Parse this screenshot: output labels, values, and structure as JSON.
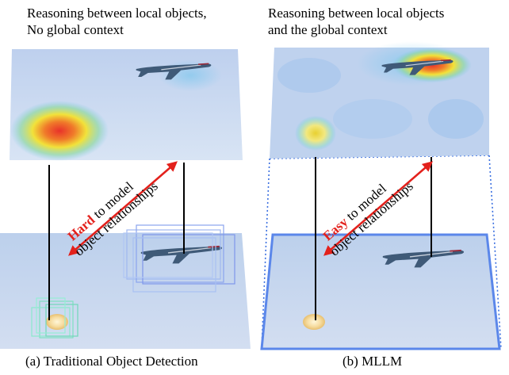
{
  "panel_a": {
    "header_line1": "Reasoning between local objects,",
    "header_line2": "No global context",
    "keyword": "Hard",
    "label_rest": " to model",
    "label_line2": "object relationships",
    "caption": "(a) Traditional Object Detection"
  },
  "panel_b": {
    "header_line1": "Reasoning between local objects",
    "header_line2": "and the global context",
    "keyword": "Easy",
    "label_rest": " to model",
    "label_line2": "object relationships",
    "caption": "(b) MLLM"
  },
  "colors": {
    "sky": "#c9d8ee",
    "arrow_red": "#e3211c",
    "heat_red": "#e8322a",
    "heat_yellow": "#f2e23a",
    "frame_blue": "#3a6fe0"
  }
}
